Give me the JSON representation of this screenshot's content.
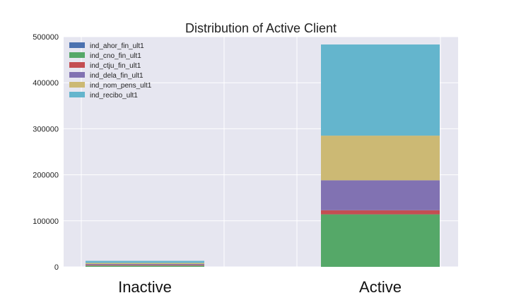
{
  "chart_data": {
    "type": "bar",
    "stacked": true,
    "title": "Distribution of Active Client",
    "xlabel": "",
    "ylabel": "",
    "categories": [
      "Inactive",
      "Active"
    ],
    "ylim": [
      0,
      500000
    ],
    "yticks": [
      0,
      100000,
      200000,
      300000,
      400000,
      500000
    ],
    "ytick_labels": [
      "0",
      "100000",
      "200000",
      "300000",
      "400000",
      "500000"
    ],
    "grid": true,
    "legend_position": "top-left",
    "series": [
      {
        "name": "ind_ahor_fin_ult1",
        "color": "#4c72b0",
        "values": [
          200,
          100
        ]
      },
      {
        "name": "ind_cno_fin_ult1",
        "color": "#55a868",
        "values": [
          2600,
          114000
        ]
      },
      {
        "name": "ind_ctju_fin_ult1",
        "color": "#c44e52",
        "values": [
          1500,
          9000
        ]
      },
      {
        "name": "ind_dela_fin_ult1",
        "color": "#8172b2",
        "values": [
          1800,
          65000
        ]
      },
      {
        "name": "ind_nom_pens_ult1",
        "color": "#ccb974",
        "values": [
          2500,
          97000
        ]
      },
      {
        "name": "ind_recibo_ult1",
        "color": "#64b5cd",
        "values": [
          4500,
          198000
        ]
      }
    ]
  }
}
